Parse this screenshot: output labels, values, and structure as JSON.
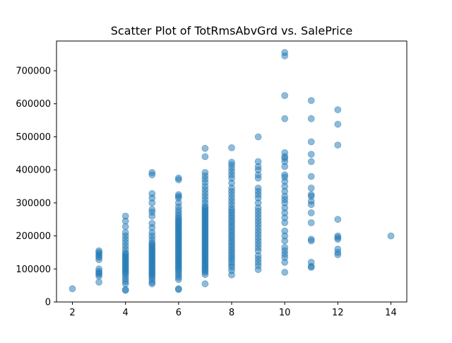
{
  "chart_data": {
    "type": "scatter",
    "title": "Scatter Plot of TotRmsAbvGrd vs. SalePrice",
    "xlabel": "",
    "ylabel": "",
    "xlim": [
      1.4,
      14.6
    ],
    "ylim": [
      0,
      790000
    ],
    "xticks": [
      2,
      4,
      6,
      8,
      10,
      12,
      14
    ],
    "yticks": [
      0,
      100000,
      200000,
      300000,
      400000,
      500000,
      600000,
      700000
    ],
    "grid": false,
    "legend": false,
    "colors": {
      "point": "#1f77b4",
      "axis": "#000000",
      "background": "#ffffff"
    },
    "point_alpha": 0.5,
    "points": [
      {
        "x": 2,
        "y": 40000
      },
      {
        "x": 3,
        "y": 60000
      },
      {
        "x": 3,
        "y": 78000
      },
      {
        "x": 3,
        "y": 84000
      },
      {
        "x": 3,
        "y": 88000
      },
      {
        "x": 3,
        "y": 93000
      },
      {
        "x": 3,
        "y": 100000
      },
      {
        "x": 3,
        "y": 128000
      },
      {
        "x": 3,
        "y": 135000
      },
      {
        "x": 3,
        "y": 140000
      },
      {
        "x": 3,
        "y": 145000
      },
      {
        "x": 3,
        "y": 150000
      },
      {
        "x": 3,
        "y": 155000
      },
      {
        "x": 4,
        "y": 35000
      },
      {
        "x": 4,
        "y": 38000
      },
      {
        "x": 4,
        "y": 55000
      },
      {
        "x": 4,
        "y": 62000
      },
      {
        "x": 4,
        "y": 70000
      },
      {
        "x": 4,
        "y": 78000
      },
      {
        "x": 4,
        "y": 85000
      },
      {
        "x": 4,
        "y": 90000
      },
      {
        "x": 4,
        "y": 95000
      },
      {
        "x": 4,
        "y": 100000
      },
      {
        "x": 4,
        "y": 105000
      },
      {
        "x": 4,
        "y": 110000
      },
      {
        "x": 4,
        "y": 115000
      },
      {
        "x": 4,
        "y": 120000
      },
      {
        "x": 4,
        "y": 125000
      },
      {
        "x": 4,
        "y": 130000
      },
      {
        "x": 4,
        "y": 135000
      },
      {
        "x": 4,
        "y": 140000
      },
      {
        "x": 4,
        "y": 145000
      },
      {
        "x": 4,
        "y": 150000
      },
      {
        "x": 4,
        "y": 160000
      },
      {
        "x": 4,
        "y": 170000
      },
      {
        "x": 4,
        "y": 180000
      },
      {
        "x": 4,
        "y": 190000
      },
      {
        "x": 4,
        "y": 200000
      },
      {
        "x": 4,
        "y": 210000
      },
      {
        "x": 4,
        "y": 228000
      },
      {
        "x": 4,
        "y": 245000
      },
      {
        "x": 4,
        "y": 260000
      },
      {
        "x": 5,
        "y": 55000
      },
      {
        "x": 5,
        "y": 60000
      },
      {
        "x": 5,
        "y": 68000
      },
      {
        "x": 5,
        "y": 75000
      },
      {
        "x": 5,
        "y": 80000
      },
      {
        "x": 5,
        "y": 85000
      },
      {
        "x": 5,
        "y": 90000
      },
      {
        "x": 5,
        "y": 95000
      },
      {
        "x": 5,
        "y": 100000
      },
      {
        "x": 5,
        "y": 105000
      },
      {
        "x": 5,
        "y": 110000
      },
      {
        "x": 5,
        "y": 115000
      },
      {
        "x": 5,
        "y": 120000
      },
      {
        "x": 5,
        "y": 125000
      },
      {
        "x": 5,
        "y": 130000
      },
      {
        "x": 5,
        "y": 135000
      },
      {
        "x": 5,
        "y": 140000
      },
      {
        "x": 5,
        "y": 145000
      },
      {
        "x": 5,
        "y": 150000
      },
      {
        "x": 5,
        "y": 155000
      },
      {
        "x": 5,
        "y": 160000
      },
      {
        "x": 5,
        "y": 165000
      },
      {
        "x": 5,
        "y": 170000
      },
      {
        "x": 5,
        "y": 175000
      },
      {
        "x": 5,
        "y": 180000
      },
      {
        "x": 5,
        "y": 190000
      },
      {
        "x": 5,
        "y": 200000
      },
      {
        "x": 5,
        "y": 210000
      },
      {
        "x": 5,
        "y": 225000
      },
      {
        "x": 5,
        "y": 238000
      },
      {
        "x": 5,
        "y": 260000
      },
      {
        "x": 5,
        "y": 272000
      },
      {
        "x": 5,
        "y": 280000
      },
      {
        "x": 5,
        "y": 300000
      },
      {
        "x": 5,
        "y": 315000
      },
      {
        "x": 5,
        "y": 328000
      },
      {
        "x": 5,
        "y": 385000
      },
      {
        "x": 5,
        "y": 392000
      },
      {
        "x": 6,
        "y": 38000
      },
      {
        "x": 6,
        "y": 40000
      },
      {
        "x": 6,
        "y": 68000
      },
      {
        "x": 6,
        "y": 75000
      },
      {
        "x": 6,
        "y": 82000
      },
      {
        "x": 6,
        "y": 88000
      },
      {
        "x": 6,
        "y": 95000
      },
      {
        "x": 6,
        "y": 100000
      },
      {
        "x": 6,
        "y": 105000
      },
      {
        "x": 6,
        "y": 110000
      },
      {
        "x": 6,
        "y": 115000
      },
      {
        "x": 6,
        "y": 120000
      },
      {
        "x": 6,
        "y": 125000
      },
      {
        "x": 6,
        "y": 130000
      },
      {
        "x": 6,
        "y": 135000
      },
      {
        "x": 6,
        "y": 140000
      },
      {
        "x": 6,
        "y": 145000
      },
      {
        "x": 6,
        "y": 150000
      },
      {
        "x": 6,
        "y": 155000
      },
      {
        "x": 6,
        "y": 160000
      },
      {
        "x": 6,
        "y": 165000
      },
      {
        "x": 6,
        "y": 170000
      },
      {
        "x": 6,
        "y": 175000
      },
      {
        "x": 6,
        "y": 180000
      },
      {
        "x": 6,
        "y": 185000
      },
      {
        "x": 6,
        "y": 190000
      },
      {
        "x": 6,
        "y": 195000
      },
      {
        "x": 6,
        "y": 200000
      },
      {
        "x": 6,
        "y": 205000
      },
      {
        "x": 6,
        "y": 210000
      },
      {
        "x": 6,
        "y": 215000
      },
      {
        "x": 6,
        "y": 220000
      },
      {
        "x": 6,
        "y": 225000
      },
      {
        "x": 6,
        "y": 230000
      },
      {
        "x": 6,
        "y": 235000
      },
      {
        "x": 6,
        "y": 240000
      },
      {
        "x": 6,
        "y": 245000
      },
      {
        "x": 6,
        "y": 250000
      },
      {
        "x": 6,
        "y": 255000
      },
      {
        "x": 6,
        "y": 262000
      },
      {
        "x": 6,
        "y": 270000
      },
      {
        "x": 6,
        "y": 278000
      },
      {
        "x": 6,
        "y": 288000
      },
      {
        "x": 6,
        "y": 300000
      },
      {
        "x": 6,
        "y": 315000
      },
      {
        "x": 6,
        "y": 320000
      },
      {
        "x": 6,
        "y": 325000
      },
      {
        "x": 6,
        "y": 370000
      },
      {
        "x": 6,
        "y": 375000
      },
      {
        "x": 7,
        "y": 55000
      },
      {
        "x": 7,
        "y": 83000
      },
      {
        "x": 7,
        "y": 90000
      },
      {
        "x": 7,
        "y": 95000
      },
      {
        "x": 7,
        "y": 100000
      },
      {
        "x": 7,
        "y": 105000
      },
      {
        "x": 7,
        "y": 110000
      },
      {
        "x": 7,
        "y": 115000
      },
      {
        "x": 7,
        "y": 120000
      },
      {
        "x": 7,
        "y": 125000
      },
      {
        "x": 7,
        "y": 130000
      },
      {
        "x": 7,
        "y": 135000
      },
      {
        "x": 7,
        "y": 140000
      },
      {
        "x": 7,
        "y": 145000
      },
      {
        "x": 7,
        "y": 150000
      },
      {
        "x": 7,
        "y": 155000
      },
      {
        "x": 7,
        "y": 160000
      },
      {
        "x": 7,
        "y": 165000
      },
      {
        "x": 7,
        "y": 170000
      },
      {
        "x": 7,
        "y": 175000
      },
      {
        "x": 7,
        "y": 180000
      },
      {
        "x": 7,
        "y": 185000
      },
      {
        "x": 7,
        "y": 190000
      },
      {
        "x": 7,
        "y": 195000
      },
      {
        "x": 7,
        "y": 200000
      },
      {
        "x": 7,
        "y": 205000
      },
      {
        "x": 7,
        "y": 210000
      },
      {
        "x": 7,
        "y": 215000
      },
      {
        "x": 7,
        "y": 220000
      },
      {
        "x": 7,
        "y": 225000
      },
      {
        "x": 7,
        "y": 230000
      },
      {
        "x": 7,
        "y": 235000
      },
      {
        "x": 7,
        "y": 240000
      },
      {
        "x": 7,
        "y": 245000
      },
      {
        "x": 7,
        "y": 250000
      },
      {
        "x": 7,
        "y": 255000
      },
      {
        "x": 7,
        "y": 260000
      },
      {
        "x": 7,
        "y": 265000
      },
      {
        "x": 7,
        "y": 270000
      },
      {
        "x": 7,
        "y": 275000
      },
      {
        "x": 7,
        "y": 280000
      },
      {
        "x": 7,
        "y": 285000
      },
      {
        "x": 7,
        "y": 290000
      },
      {
        "x": 7,
        "y": 300000
      },
      {
        "x": 7,
        "y": 310000
      },
      {
        "x": 7,
        "y": 320000
      },
      {
        "x": 7,
        "y": 330000
      },
      {
        "x": 7,
        "y": 340000
      },
      {
        "x": 7,
        "y": 350000
      },
      {
        "x": 7,
        "y": 362000
      },
      {
        "x": 7,
        "y": 372000
      },
      {
        "x": 7,
        "y": 382000
      },
      {
        "x": 7,
        "y": 392000
      },
      {
        "x": 7,
        "y": 440000
      },
      {
        "x": 7,
        "y": 465000
      },
      {
        "x": 8,
        "y": 82000
      },
      {
        "x": 8,
        "y": 95000
      },
      {
        "x": 8,
        "y": 105000
      },
      {
        "x": 8,
        "y": 112000
      },
      {
        "x": 8,
        "y": 120000
      },
      {
        "x": 8,
        "y": 128000
      },
      {
        "x": 8,
        "y": 135000
      },
      {
        "x": 8,
        "y": 142000
      },
      {
        "x": 8,
        "y": 150000
      },
      {
        "x": 8,
        "y": 157000
      },
      {
        "x": 8,
        "y": 165000
      },
      {
        "x": 8,
        "y": 172000
      },
      {
        "x": 8,
        "y": 180000
      },
      {
        "x": 8,
        "y": 187000
      },
      {
        "x": 8,
        "y": 195000
      },
      {
        "x": 8,
        "y": 202000
      },
      {
        "x": 8,
        "y": 210000
      },
      {
        "x": 8,
        "y": 217000
      },
      {
        "x": 8,
        "y": 225000
      },
      {
        "x": 8,
        "y": 232000
      },
      {
        "x": 8,
        "y": 240000
      },
      {
        "x": 8,
        "y": 247000
      },
      {
        "x": 8,
        "y": 255000
      },
      {
        "x": 8,
        "y": 262000
      },
      {
        "x": 8,
        "y": 270000
      },
      {
        "x": 8,
        "y": 277000
      },
      {
        "x": 8,
        "y": 285000
      },
      {
        "x": 8,
        "y": 295000
      },
      {
        "x": 8,
        "y": 305000
      },
      {
        "x": 8,
        "y": 315000
      },
      {
        "x": 8,
        "y": 325000
      },
      {
        "x": 8,
        "y": 335000
      },
      {
        "x": 8,
        "y": 345000
      },
      {
        "x": 8,
        "y": 360000
      },
      {
        "x": 8,
        "y": 375000
      },
      {
        "x": 8,
        "y": 385000
      },
      {
        "x": 8,
        "y": 395000
      },
      {
        "x": 8,
        "y": 405000
      },
      {
        "x": 8,
        "y": 415000
      },
      {
        "x": 8,
        "y": 423000
      },
      {
        "x": 8,
        "y": 467000
      },
      {
        "x": 9,
        "y": 98000
      },
      {
        "x": 9,
        "y": 110000
      },
      {
        "x": 9,
        "y": 120000
      },
      {
        "x": 9,
        "y": 130000
      },
      {
        "x": 9,
        "y": 140000
      },
      {
        "x": 9,
        "y": 155000
      },
      {
        "x": 9,
        "y": 165000
      },
      {
        "x": 9,
        "y": 175000
      },
      {
        "x": 9,
        "y": 185000
      },
      {
        "x": 9,
        "y": 195000
      },
      {
        "x": 9,
        "y": 205000
      },
      {
        "x": 9,
        "y": 215000
      },
      {
        "x": 9,
        "y": 225000
      },
      {
        "x": 9,
        "y": 235000
      },
      {
        "x": 9,
        "y": 245000
      },
      {
        "x": 9,
        "y": 255000
      },
      {
        "x": 9,
        "y": 265000
      },
      {
        "x": 9,
        "y": 275000
      },
      {
        "x": 9,
        "y": 285000
      },
      {
        "x": 9,
        "y": 300000
      },
      {
        "x": 9,
        "y": 315000
      },
      {
        "x": 9,
        "y": 325000
      },
      {
        "x": 9,
        "y": 335000
      },
      {
        "x": 9,
        "y": 345000
      },
      {
        "x": 9,
        "y": 375000
      },
      {
        "x": 9,
        "y": 385000
      },
      {
        "x": 9,
        "y": 400000
      },
      {
        "x": 9,
        "y": 410000
      },
      {
        "x": 9,
        "y": 425000
      },
      {
        "x": 9,
        "y": 500000
      },
      {
        "x": 10,
        "y": 90000
      },
      {
        "x": 10,
        "y": 120000
      },
      {
        "x": 10,
        "y": 135000
      },
      {
        "x": 10,
        "y": 145000
      },
      {
        "x": 10,
        "y": 155000
      },
      {
        "x": 10,
        "y": 165000
      },
      {
        "x": 10,
        "y": 185000
      },
      {
        "x": 10,
        "y": 200000
      },
      {
        "x": 10,
        "y": 215000
      },
      {
        "x": 10,
        "y": 240000
      },
      {
        "x": 10,
        "y": 255000
      },
      {
        "x": 10,
        "y": 270000
      },
      {
        "x": 10,
        "y": 285000
      },
      {
        "x": 10,
        "y": 300000
      },
      {
        "x": 10,
        "y": 310000
      },
      {
        "x": 10,
        "y": 320000
      },
      {
        "x": 10,
        "y": 335000
      },
      {
        "x": 10,
        "y": 350000
      },
      {
        "x": 10,
        "y": 365000
      },
      {
        "x": 10,
        "y": 378000
      },
      {
        "x": 10,
        "y": 385000
      },
      {
        "x": 10,
        "y": 410000
      },
      {
        "x": 10,
        "y": 425000
      },
      {
        "x": 10,
        "y": 435000
      },
      {
        "x": 10,
        "y": 440000
      },
      {
        "x": 10,
        "y": 452000
      },
      {
        "x": 10,
        "y": 555000
      },
      {
        "x": 10,
        "y": 625000
      },
      {
        "x": 10,
        "y": 745000
      },
      {
        "x": 10,
        "y": 755000
      },
      {
        "x": 11,
        "y": 105000
      },
      {
        "x": 11,
        "y": 108000
      },
      {
        "x": 11,
        "y": 120000
      },
      {
        "x": 11,
        "y": 185000
      },
      {
        "x": 11,
        "y": 190000
      },
      {
        "x": 11,
        "y": 240000
      },
      {
        "x": 11,
        "y": 270000
      },
      {
        "x": 11,
        "y": 295000
      },
      {
        "x": 11,
        "y": 305000
      },
      {
        "x": 11,
        "y": 320000
      },
      {
        "x": 11,
        "y": 325000
      },
      {
        "x": 11,
        "y": 345000
      },
      {
        "x": 11,
        "y": 380000
      },
      {
        "x": 11,
        "y": 425000
      },
      {
        "x": 11,
        "y": 447000
      },
      {
        "x": 11,
        "y": 485000
      },
      {
        "x": 11,
        "y": 555000
      },
      {
        "x": 11,
        "y": 610000
      },
      {
        "x": 12,
        "y": 143000
      },
      {
        "x": 12,
        "y": 150000
      },
      {
        "x": 12,
        "y": 160000
      },
      {
        "x": 12,
        "y": 190000
      },
      {
        "x": 12,
        "y": 195000
      },
      {
        "x": 12,
        "y": 200000
      },
      {
        "x": 12,
        "y": 250000
      },
      {
        "x": 12,
        "y": 475000
      },
      {
        "x": 12,
        "y": 538000
      },
      {
        "x": 12,
        "y": 582000
      },
      {
        "x": 14,
        "y": 200000
      }
    ]
  }
}
